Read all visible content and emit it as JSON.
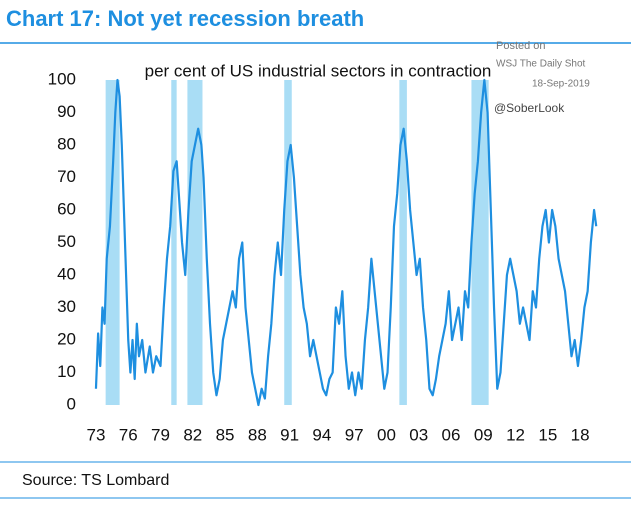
{
  "chart_data": {
    "type": "line",
    "title": "Chart 17: Not yet recession breath",
    "subtitle": "per cent of US industrial sectors in contraction",
    "annotations": [
      "Posted on",
      "WSJ The Daily Shot",
      "18-Sep-2019",
      "@SoberLook"
    ],
    "source": "Source: TS Lombard",
    "xlim": [
      1972,
      2020.5
    ],
    "ylim": [
      0,
      100
    ],
    "yticks": [
      0,
      10,
      20,
      30,
      40,
      50,
      60,
      70,
      80,
      90,
      100
    ],
    "xticks": [
      {
        "value": 1973,
        "label": "73"
      },
      {
        "value": 1976,
        "label": "76"
      },
      {
        "value": 1979,
        "label": "79"
      },
      {
        "value": 1982,
        "label": "82"
      },
      {
        "value": 1985,
        "label": "85"
      },
      {
        "value": 1988,
        "label": "88"
      },
      {
        "value": 1991,
        "label": "91"
      },
      {
        "value": 1994,
        "label": "94"
      },
      {
        "value": 1997,
        "label": "97"
      },
      {
        "value": 2000,
        "label": "00"
      },
      {
        "value": 2003,
        "label": "03"
      },
      {
        "value": 2006,
        "label": "06"
      },
      {
        "value": 2009,
        "label": "09"
      },
      {
        "value": 2012,
        "label": "12"
      },
      {
        "value": 2015,
        "label": "15"
      },
      {
        "value": 2018,
        "label": "18"
      }
    ],
    "recessions": [
      [
        1973.9,
        1975.2
      ],
      [
        1980.0,
        1980.5
      ],
      [
        1981.5,
        1982.9
      ],
      [
        1990.5,
        1991.2
      ],
      [
        2001.2,
        2001.9
      ],
      [
        2007.9,
        2009.5
      ]
    ],
    "recession_color": "#a9ddf5",
    "series": [
      {
        "color": "#1e8fe0",
        "x": [
          1973.0,
          1973.2,
          1973.4,
          1973.6,
          1973.8,
          1974.0,
          1974.3,
          1974.6,
          1974.8,
          1975.0,
          1975.2,
          1975.4,
          1975.6,
          1975.8,
          1976.0,
          1976.2,
          1976.4,
          1976.6,
          1976.8,
          1977.0,
          1977.3,
          1977.6,
          1978.0,
          1978.3,
          1978.6,
          1979.0,
          1979.3,
          1979.6,
          1979.9,
          1980.2,
          1980.5,
          1980.8,
          1981.0,
          1981.3,
          1981.6,
          1981.9,
          1982.2,
          1982.5,
          1982.8,
          1983.0,
          1983.3,
          1983.6,
          1983.9,
          1984.2,
          1984.5,
          1984.8,
          1985.1,
          1985.4,
          1985.7,
          1986.0,
          1986.3,
          1986.6,
          1986.9,
          1987.2,
          1987.5,
          1987.8,
          1988.1,
          1988.4,
          1988.7,
          1989.0,
          1989.3,
          1989.6,
          1989.9,
          1990.2,
          1990.5,
          1990.8,
          1991.1,
          1991.4,
          1991.7,
          1992.0,
          1992.3,
          1992.6,
          1992.9,
          1993.2,
          1993.5,
          1993.8,
          1994.1,
          1994.4,
          1994.7,
          1995.0,
          1995.3,
          1995.6,
          1995.9,
          1996.2,
          1996.5,
          1996.8,
          1997.1,
          1997.4,
          1997.7,
          1998.0,
          1998.3,
          1998.6,
          1998.9,
          1999.2,
          1999.5,
          1999.8,
          2000.1,
          2000.4,
          2000.7,
          2001.0,
          2001.3,
          2001.6,
          2001.9,
          2002.2,
          2002.5,
          2002.8,
          2003.1,
          2003.4,
          2003.7,
          2004.0,
          2004.3,
          2004.6,
          2004.9,
          2005.2,
          2005.5,
          2005.8,
          2006.1,
          2006.4,
          2006.7,
          2007.0,
          2007.3,
          2007.6,
          2007.9,
          2008.2,
          2008.5,
          2008.8,
          2009.1,
          2009.4,
          2009.7,
          2010.0,
          2010.3,
          2010.6,
          2010.9,
          2011.2,
          2011.5,
          2011.8,
          2012.1,
          2012.4,
          2012.7,
          2013.0,
          2013.3,
          2013.6,
          2013.9,
          2014.2,
          2014.5,
          2014.8,
          2015.1,
          2015.4,
          2015.7,
          2016.0,
          2016.3,
          2016.6,
          2016.9,
          2017.2,
          2017.5,
          2017.8,
          2018.1,
          2018.4,
          2018.7,
          2019.0,
          2019.3,
          2019.5
        ],
        "values": [
          5,
          22,
          12,
          30,
          25,
          45,
          55,
          75,
          90,
          100,
          95,
          80,
          60,
          40,
          20,
          10,
          20,
          8,
          25,
          15,
          20,
          10,
          18,
          10,
          15,
          12,
          30,
          45,
          55,
          72,
          75,
          60,
          50,
          40,
          60,
          75,
          80,
          85,
          80,
          70,
          45,
          25,
          10,
          3,
          8,
          20,
          25,
          30,
          35,
          30,
          45,
          50,
          30,
          20,
          10,
          5,
          0,
          5,
          2,
          15,
          25,
          40,
          50,
          40,
          60,
          75,
          80,
          70,
          55,
          40,
          30,
          25,
          15,
          20,
          15,
          10,
          5,
          3,
          8,
          10,
          30,
          25,
          35,
          15,
          5,
          10,
          3,
          10,
          5,
          20,
          30,
          45,
          35,
          25,
          15,
          5,
          10,
          30,
          55,
          65,
          80,
          85,
          75,
          60,
          50,
          40,
          45,
          30,
          20,
          5,
          3,
          8,
          15,
          20,
          25,
          35,
          20,
          25,
          30,
          20,
          35,
          30,
          50,
          65,
          75,
          90,
          100,
          90,
          60,
          30,
          5,
          10,
          25,
          40,
          45,
          40,
          35,
          25,
          30,
          25,
          20,
          35,
          30,
          45,
          55,
          60,
          50,
          60,
          55,
          45,
          40,
          35,
          25,
          15,
          20,
          12,
          20,
          30,
          35,
          50,
          60,
          55
        ]
      }
    ]
  }
}
